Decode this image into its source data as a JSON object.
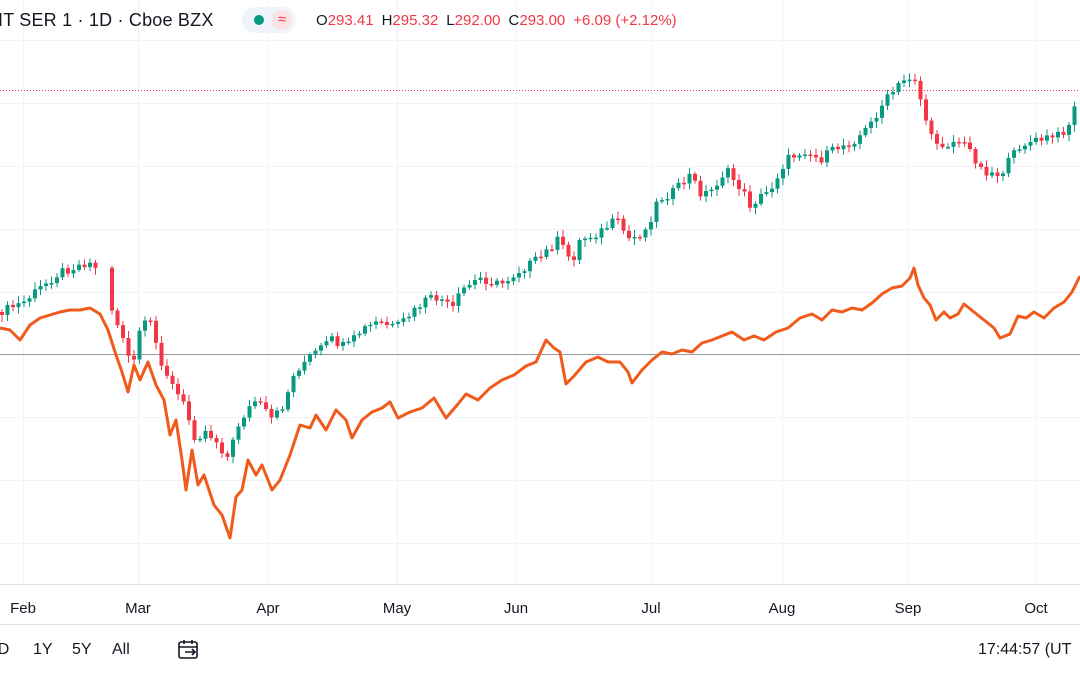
{
  "header": {
    "symbol": "IT SER 1 · 1D · Cboe BZX",
    "open_label": "O",
    "open": "293.41",
    "high_label": "H",
    "high": "295.32",
    "low_label": "L",
    "low": "292.00",
    "close_label": "C",
    "close": "293.00",
    "change": "+6.09 (+2.12%)",
    "status_icon": "dot-status-icon",
    "approx_symbol": "≈"
  },
  "time_axis": {
    "labels": [
      "Feb",
      "Mar",
      "Apr",
      "May",
      "Jun",
      "Jul",
      "Aug",
      "Sep",
      "Oct"
    ]
  },
  "toolbar": {
    "ranges": [
      "TD",
      "1Y",
      "5Y",
      "All"
    ],
    "calendar_icon": "calendar-range-icon",
    "clock": "17:44:57 (UT"
  },
  "colors": {
    "up": "#089981",
    "down": "#f23645",
    "compare_line": "#f05a1a",
    "grid": "#f0f3fa",
    "baseline": "#9598a1"
  },
  "chart_data": {
    "type": "candlestick",
    "title": "",
    "x_labels": [
      "Feb",
      "Mar",
      "Apr",
      "May",
      "Jun",
      "Jul",
      "Aug",
      "Sep",
      "Oct"
    ],
    "trading_days": 196,
    "series": [
      {
        "type": "candlestick",
        "name": "",
        "last": {
          "open": 293.41,
          "high": 295.32,
          "low": 292.0,
          "close": 293.0
        }
      },
      {
        "type": "line",
        "name": ""
      }
    ],
    "price_reference": 293.0,
    "grid": true
  }
}
